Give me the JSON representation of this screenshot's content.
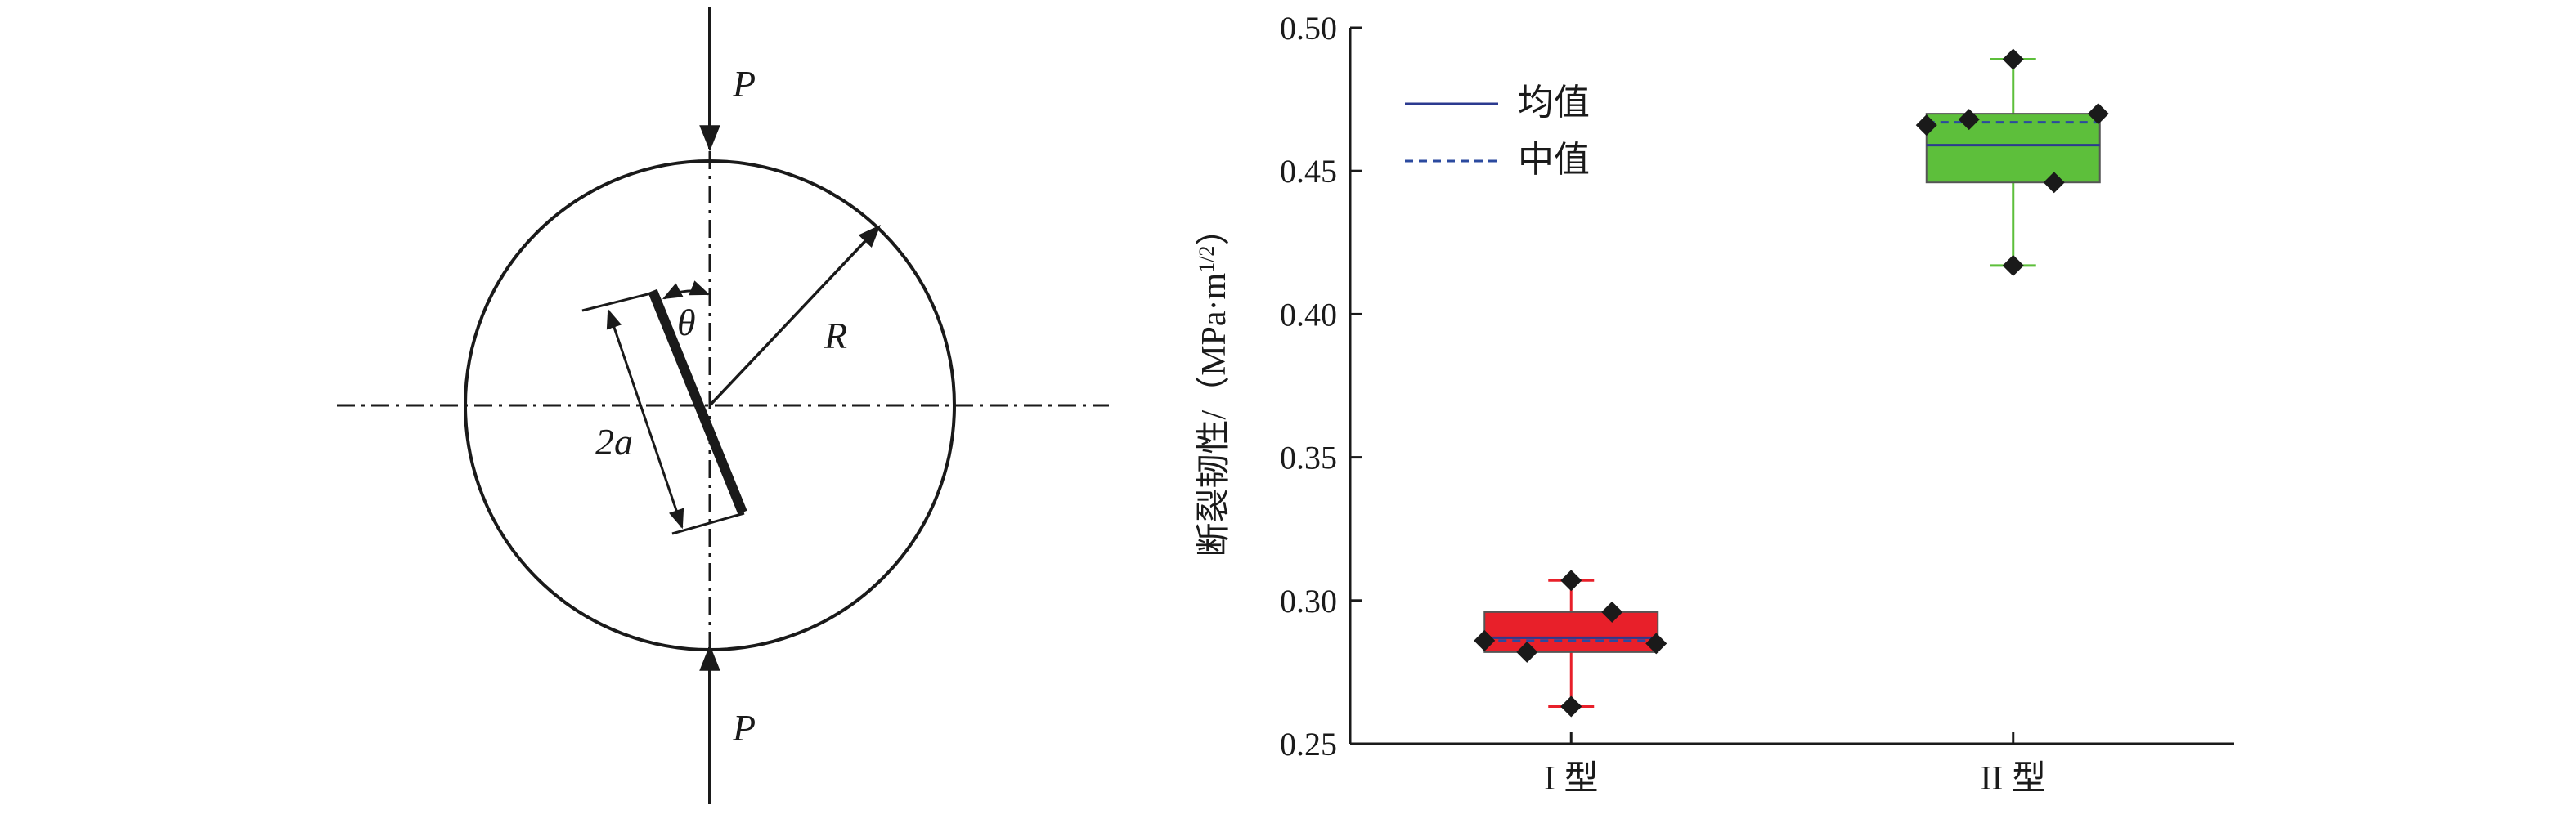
{
  "diagram": {
    "load_top": "P",
    "load_bottom": "P",
    "angle": "θ",
    "radius": "R",
    "crack_length": "2a"
  },
  "chart_data": {
    "type": "box",
    "y_label": {
      "main": "断裂韧性/（MPa·m",
      "sup": "1/2",
      "end": "）"
    },
    "categories": [
      "I 型",
      "II 型"
    ],
    "ylim": [
      0.25,
      0.5
    ],
    "yticks": [
      0.25,
      {
        "value": 0.3,
        "label": "0.30"
      },
      0.35,
      {
        "value": 0.4,
        "label": "0.40"
      },
      0.45,
      {
        "value": 0.5,
        "label": "0.50"
      }
    ],
    "legend": {
      "mean": "均值",
      "median": "中值"
    },
    "mean_color": "#2b3a8f",
    "median_color": "#2b4a9f",
    "boxes": [
      {
        "color": "#e8202a",
        "whisker_low": 0.263,
        "q1": 0.282,
        "median": 0.286,
        "mean": 0.287,
        "q3": 0.296,
        "whisker_high": 0.307,
        "points": [
          0.286,
          0.282,
          0.307,
          0.263,
          0.296,
          0.285
        ]
      },
      {
        "color": "#5dbf3b",
        "whisker_low": 0.417,
        "q1": 0.446,
        "median": 0.467,
        "mean": 0.459,
        "q3": 0.47,
        "whisker_high": 0.489,
        "points": [
          0.466,
          0.468,
          0.489,
          0.417,
          0.446,
          0.47
        ]
      }
    ]
  }
}
